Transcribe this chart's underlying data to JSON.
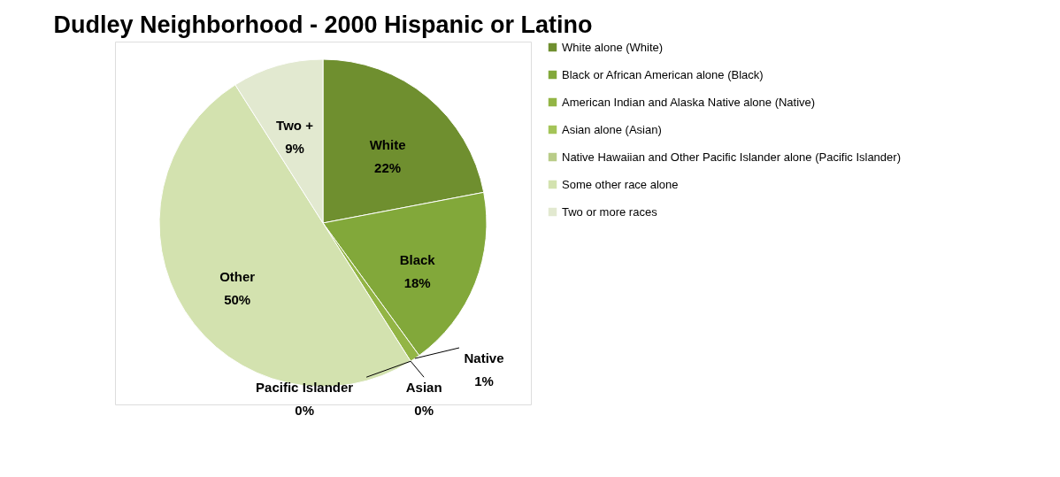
{
  "chart_data": {
    "type": "pie",
    "title": "Dudley Neighborhood - 2000 Hispanic or Latino",
    "categories": [
      "White alone (White)",
      "Black or African American alone (Black)",
      "American Indian and Alaska Native alone (Native)",
      "Asian alone (Asian)",
      "Native Hawaiian and Other Pacific Islander alone (Pacific Islander)",
      "Some other race alone",
      "Two or more races"
    ],
    "values": [
      22,
      18,
      1,
      0,
      0,
      50,
      9
    ],
    "colors": [
      "#6f8f2f",
      "#82a83a",
      "#93b545",
      "#a4c458",
      "#b9cc88",
      "#d3e2af",
      "#e2e9d0"
    ],
    "value_labels": [
      "White\n22%",
      "Black\n18%",
      "Native\n1%",
      "Asian\n0%",
      "Pacific Islander\n0%",
      "Other\n50%",
      "Two +\n9%"
    ],
    "legend": "right"
  }
}
